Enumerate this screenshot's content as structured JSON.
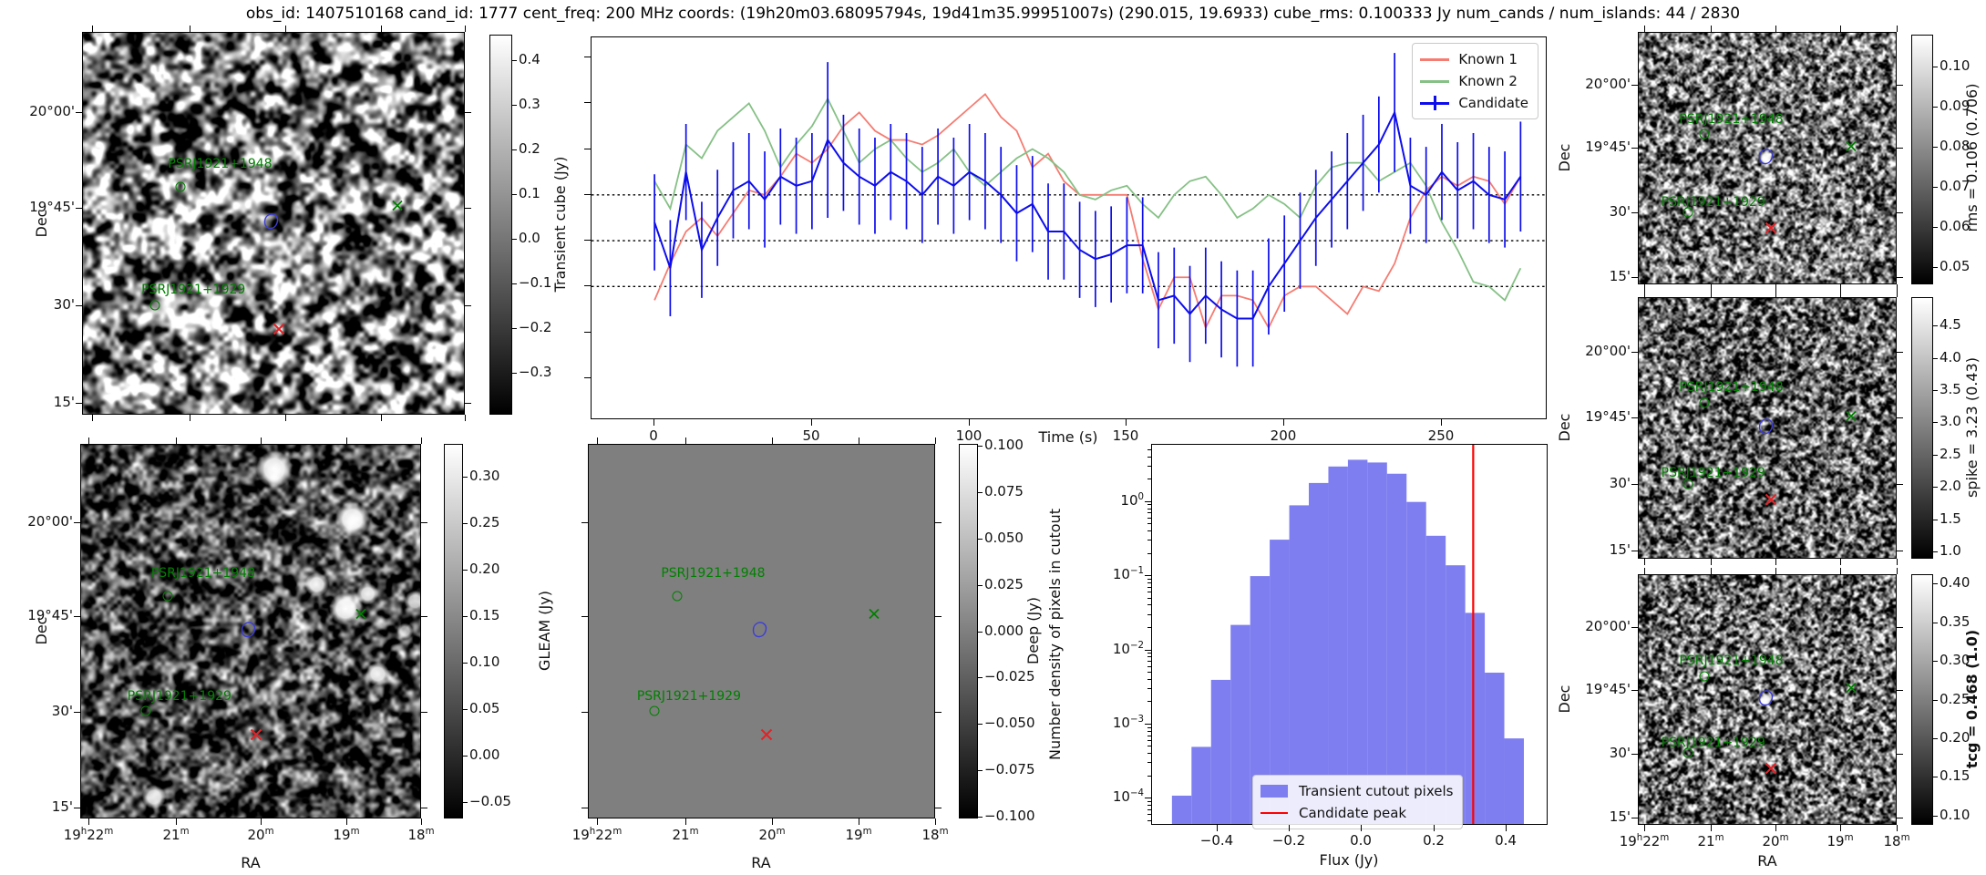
{
  "title": "obs_id: 1407510168 cand_id: 1777 cent_freq: 200 MHz coords: (19h20m03.68095794s, 19d41m35.99951007s) (290.015, 19.6933) cube_rms: 0.100333 Jy num_cands / num_islands: 44 / 2830",
  "labels": {
    "time": "Time (s)",
    "flux": "Flux (Jy)",
    "ra": "RA",
    "dec": "Dec",
    "numdensity": "Number density of pixels in cutout"
  },
  "colors": {
    "known1": "#f57c72",
    "known2": "#85c085",
    "candidate": "#0d0dec",
    "hist_fill": "#7e7ef0",
    "peak_line": "#ff0000",
    "annotation_green": "#008000",
    "annotation_red": "#e32227",
    "contour_blue": "#3c3cd9",
    "deep_gray": "#7f7f7f"
  },
  "annotations": {
    "sources": [
      {
        "name": "PSRJ1921+1948",
        "label_f": [
          0.36,
          0.345
        ],
        "circle_f": [
          0.255,
          0.405
        ]
      },
      {
        "name": "PSRJ1921+1929",
        "label_f": [
          0.29,
          0.675
        ],
        "circle_f": [
          0.19,
          0.715
        ]
      }
    ],
    "candidate_contour_f": [
      0.495,
      0.5
    ],
    "known_source_x_f": [
      0.825,
      0.455
    ],
    "candidate_x_f": [
      0.515,
      0.78
    ]
  },
  "dec_ticks": {
    "labels": [
      "20°00'",
      "19°45'",
      "30'",
      "15'"
    ],
    "fractions": [
      0.21,
      0.46,
      0.715,
      0.97
    ]
  },
  "ra_ticks": {
    "labels": [
      "19h22m",
      "21m",
      "20m",
      "19m",
      "18m"
    ],
    "fractions": [
      0.025,
      0.28,
      0.53,
      0.78,
      1.0
    ]
  },
  "panels": {
    "transient": {
      "colorbar": {
        "label": "Transient cube (Jy)",
        "vmin": -0.394,
        "vmax": 0.457,
        "ticks": [
          {
            "v": 0.4,
            "t": "0.4"
          },
          {
            "v": 0.3,
            "t": "0.3"
          },
          {
            "v": 0.2,
            "t": "0.2"
          },
          {
            "v": 0.1,
            "t": "0.1"
          },
          {
            "v": 0.0,
            "t": "0.0"
          },
          {
            "v": -0.1,
            "t": "−0.1"
          },
          {
            "v": -0.2,
            "t": "−0.2"
          },
          {
            "v": -0.3,
            "t": "−0.3"
          }
        ]
      }
    },
    "lightcurve": {
      "xlabel": "Time (s)",
      "legend": [
        "Known 1",
        "Known 2",
        "Candidate"
      ],
      "xticks": [
        {
          "v": 0,
          "t": "0"
        },
        {
          "v": 50,
          "t": "50"
        },
        {
          "v": 100,
          "t": "100"
        },
        {
          "v": 150,
          "t": "150"
        },
        {
          "v": 200,
          "t": "200"
        },
        {
          "v": 250,
          "t": "250"
        }
      ]
    },
    "rms": {
      "colorbar": {
        "label": "rms = 0.106 (0.706)",
        "vmin": 0.0456,
        "vmax": 0.108,
        "ticks": [
          {
            "v": 0.1,
            "t": "0.10"
          },
          {
            "v": 0.09,
            "t": "0.09"
          },
          {
            "v": 0.08,
            "t": "0.08"
          },
          {
            "v": 0.07,
            "t": "0.07"
          },
          {
            "v": 0.06,
            "t": "0.06"
          },
          {
            "v": 0.05,
            "t": "0.05"
          }
        ]
      }
    },
    "spike": {
      "colorbar": {
        "label": "spike = 3.23 (0.43)",
        "vmin": 0.89,
        "vmax": 4.94,
        "ticks": [
          {
            "v": 4.5,
            "t": "4.5"
          },
          {
            "v": 4.0,
            "t": "4.0"
          },
          {
            "v": 3.5,
            "t": "3.5"
          },
          {
            "v": 3.0,
            "t": "3.0"
          },
          {
            "v": 2.5,
            "t": "2.5"
          },
          {
            "v": 2.0,
            "t": "2.0"
          },
          {
            "v": 1.5,
            "t": "1.5"
          },
          {
            "v": 1.0,
            "t": "1.0"
          }
        ]
      }
    },
    "tcg": {
      "colorbar": {
        "label": "tcg = 0.468 (1.0)",
        "bold": true,
        "vmin": 0.088,
        "vmax": 0.412,
        "ticks": [
          {
            "v": 0.4,
            "t": "0.40"
          },
          {
            "v": 0.35,
            "t": "0.35"
          },
          {
            "v": 0.3,
            "t": "0.30"
          },
          {
            "v": 0.25,
            "t": "0.25"
          },
          {
            "v": 0.2,
            "t": "0.20"
          },
          {
            "v": 0.15,
            "t": "0.15"
          },
          {
            "v": 0.1,
            "t": "0.10"
          }
        ]
      }
    },
    "gleam": {
      "colorbar": {
        "label": "GLEAM (Jy)",
        "vmin": -0.068,
        "vmax": 0.335,
        "ticks": [
          {
            "v": 0.3,
            "t": "0.30"
          },
          {
            "v": 0.25,
            "t": "0.25"
          },
          {
            "v": 0.2,
            "t": "0.20"
          },
          {
            "v": 0.15,
            "t": "0.15"
          },
          {
            "v": 0.1,
            "t": "0.10"
          },
          {
            "v": 0.05,
            "t": "0.05"
          },
          {
            "v": 0.0,
            "t": "0.00"
          },
          {
            "v": -0.05,
            "t": "−0.05"
          }
        ]
      }
    },
    "deep": {
      "colorbar": {
        "label": "Deep (Jy)",
        "vmin": -0.101,
        "vmax": 0.101,
        "ticks": [
          {
            "v": 0.1,
            "t": "0.100"
          },
          {
            "v": 0.075,
            "t": "0.075"
          },
          {
            "v": 0.05,
            "t": "0.050"
          },
          {
            "v": 0.025,
            "t": "0.025"
          },
          {
            "v": 0.0,
            "t": "0.000"
          },
          {
            "v": -0.025,
            "t": "−0.025"
          },
          {
            "v": -0.05,
            "t": "−0.050"
          },
          {
            "v": -0.075,
            "t": "−0.075"
          },
          {
            "v": -0.1,
            "t": "−0.100"
          }
        ]
      }
    },
    "hist": {
      "xlabel": "Flux (Jy)",
      "legend": [
        "Transient cutout pixels",
        "Candidate peak"
      ],
      "xticks": [
        {
          "v": -0.4,
          "t": "−0.4"
        },
        {
          "v": -0.2,
          "t": "−0.2"
        },
        {
          "v": 0.0,
          "t": "0.0"
        },
        {
          "v": 0.2,
          "t": "0.2"
        },
        {
          "v": 0.4,
          "t": "0.4"
        }
      ],
      "ytick_exponents": [
        "0",
        "−1",
        "−2",
        "−3",
        "−4"
      ]
    }
  },
  "chart_data": [
    {
      "type": "line",
      "name": "candidate_lightcurve",
      "xlabel": "Time (s)",
      "ylabel": "",
      "xlim": [
        -20,
        283
      ],
      "ylim": [
        -0.388,
        0.444
      ],
      "xticks": [
        0,
        50,
        100,
        150,
        200,
        250
      ],
      "hlines_dotted": [
        0.1,
        0.0,
        -0.1
      ],
      "legend_position": "upper right",
      "x": [
        0,
        5,
        10,
        15,
        20,
        25,
        30,
        35,
        40,
        45,
        50,
        55,
        60,
        65,
        70,
        75,
        80,
        85,
        90,
        95,
        100,
        105,
        110,
        115,
        120,
        125,
        130,
        135,
        140,
        145,
        150,
        155,
        160,
        165,
        170,
        175,
        180,
        185,
        190,
        195,
        200,
        205,
        210,
        215,
        220,
        225,
        230,
        235,
        240,
        245,
        250,
        255,
        260,
        265,
        270,
        275
      ],
      "series": [
        {
          "name": "Known 1",
          "values": [
            -0.13,
            -0.05,
            0.02,
            0.05,
            0.01,
            0.06,
            0.11,
            0.1,
            0.14,
            0.19,
            0.17,
            0.2,
            0.25,
            0.28,
            0.24,
            0.22,
            0.22,
            0.21,
            0.23,
            0.26,
            0.29,
            0.32,
            0.27,
            0.24,
            0.16,
            0.19,
            0.13,
            0.1,
            0.1,
            0.1,
            0.1,
            -0.04,
            -0.15,
            -0.08,
            -0.08,
            -0.19,
            -0.12,
            -0.12,
            -0.13,
            -0.19,
            -0.12,
            -0.1,
            -0.1,
            -0.13,
            -0.16,
            -0.1,
            -0.11,
            -0.05,
            0.05,
            0.11,
            0.14,
            0.12,
            0.14,
            0.13,
            0.08,
            0.14
          ]
        },
        {
          "name": "Known 2",
          "values": [
            0.13,
            0.07,
            0.21,
            0.18,
            0.24,
            0.27,
            0.3,
            0.24,
            0.16,
            0.21,
            0.25,
            0.31,
            0.24,
            0.17,
            0.2,
            0.22,
            0.18,
            0.15,
            0.17,
            0.2,
            0.15,
            0.12,
            0.15,
            0.18,
            0.2,
            0.18,
            0.15,
            0.1,
            0.09,
            0.11,
            0.12,
            0.08,
            0.05,
            0.1,
            0.13,
            0.14,
            0.1,
            0.05,
            0.07,
            0.1,
            0.08,
            0.05,
            0.12,
            0.16,
            0.17,
            0.17,
            0.13,
            0.15,
            0.17,
            0.12,
            0.04,
            -0.02,
            -0.09,
            -0.1,
            -0.13,
            -0.06
          ]
        },
        {
          "name": "Candidate",
          "values": [
            0.04,
            -0.06,
            0.15,
            -0.02,
            0.05,
            0.11,
            0.13,
            0.09,
            0.14,
            0.12,
            0.13,
            0.22,
            0.17,
            0.14,
            0.12,
            0.15,
            0.13,
            0.1,
            0.14,
            0.12,
            0.15,
            0.13,
            0.1,
            0.06,
            0.08,
            0.02,
            0.02,
            -0.02,
            -0.04,
            -0.03,
            -0.01,
            -0.01,
            -0.13,
            -0.12,
            -0.16,
            -0.12,
            -0.15,
            -0.17,
            -0.17,
            -0.1,
            -0.05,
            0.0,
            0.05,
            0.09,
            0.13,
            0.17,
            0.21,
            0.28,
            0.12,
            0.1,
            0.15,
            0.11,
            0.13,
            0.1,
            0.09,
            0.14
          ],
          "yerr_default": 0.105,
          "yerr_overrides": {
            "11": 0.17,
            "47": 0.13,
            "55": 0.12
          }
        }
      ]
    },
    {
      "type": "bar",
      "name": "flux_histogram",
      "xlabel": "Flux (Jy)",
      "ylabel": "Number density of pixels in cutout",
      "yscale": "log",
      "xlim": [
        -0.58,
        0.51
      ],
      "ylog_top": 0.77,
      "ylog_bottom": -4.34,
      "xticks": [
        -0.4,
        -0.2,
        0.0,
        0.2,
        0.4
      ],
      "bin_width": 0.054,
      "bin_left_edges": [
        -0.525,
        -0.471,
        -0.417,
        -0.363,
        -0.309,
        -0.255,
        -0.201,
        -0.147,
        -0.093,
        -0.039,
        0.015,
        0.069,
        0.123,
        0.177,
        0.231,
        0.285,
        0.339,
        0.393
      ],
      "densities": [
        0.00011,
        0.0005,
        0.004,
        0.022,
        0.1,
        0.31,
        0.9,
        1.8,
        3.0,
        3.7,
        3.4,
        2.4,
        1.0,
        0.35,
        0.14,
        0.032,
        0.005,
        0.00065
      ],
      "candidate_peak_flux": 0.307,
      "legend": [
        "Transient cutout pixels",
        "Candidate peak"
      ]
    },
    {
      "type": "heatmap",
      "name": "transient_cube_cutout",
      "colorbar_label": "Transient cube (Jy)",
      "value_range": [
        -0.394,
        0.457
      ],
      "content": "smoothed grayscale noise cutout with pulsar annotations"
    },
    {
      "type": "heatmap",
      "name": "gleam_cutout",
      "colorbar_label": "GLEAM (Jy)",
      "value_range": [
        -0.068,
        0.335
      ],
      "content": "dark grayscale sky map with several bright white sources right side"
    },
    {
      "type": "heatmap",
      "name": "deep_cutout",
      "colorbar_label": "Deep (Jy)",
      "value_range": [
        -0.101,
        0.101
      ],
      "content": "uniform mid-gray image with annotations"
    },
    {
      "type": "heatmap",
      "name": "rms_cutout",
      "colorbar_label": "rms = 0.106 (0.706)",
      "value_range": [
        0.0456,
        0.108
      ],
      "content": "fine grain noise, white spot at candidate contour"
    },
    {
      "type": "heatmap",
      "name": "spike_cutout",
      "colorbar_label": "spike = 3.23 (0.43)",
      "value_range": [
        0.89,
        4.94
      ],
      "content": "fine grain noise"
    },
    {
      "type": "heatmap",
      "name": "tcg_cutout",
      "colorbar_label": "tcg = 0.468 (1.0)",
      "value_range": [
        0.088,
        0.412
      ],
      "content": "fine grain noise, white spot at candidate contour"
    }
  ]
}
